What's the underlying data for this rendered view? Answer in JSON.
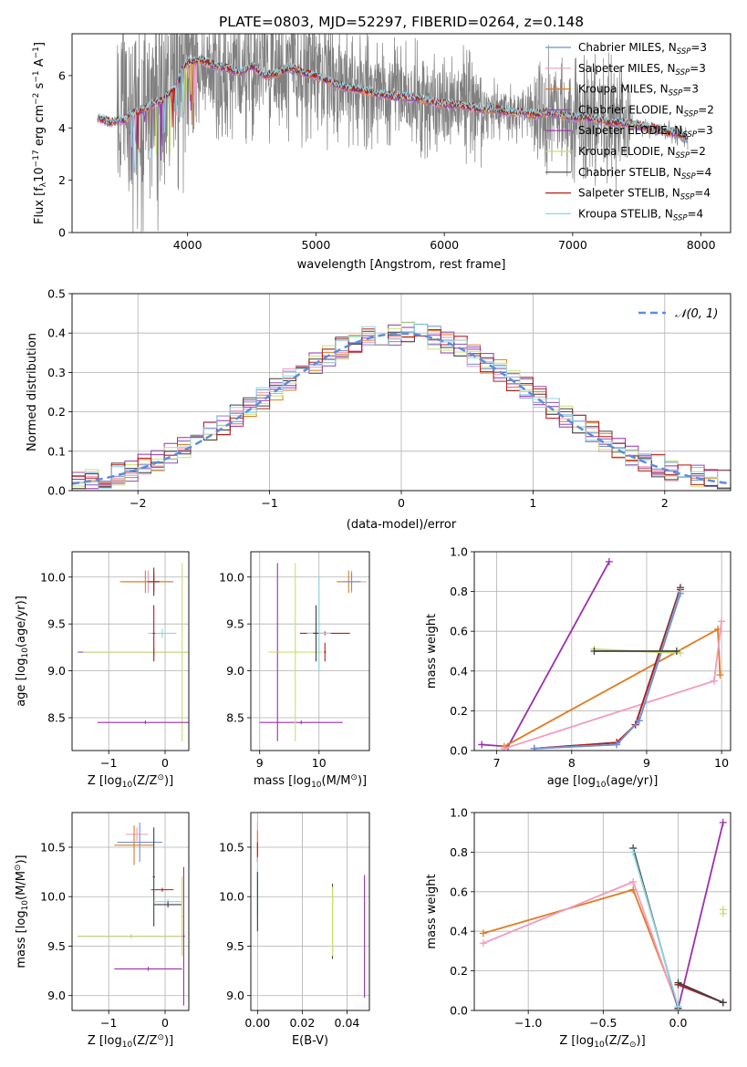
{
  "colors": {
    "chabrier_miles": "#6f8fd4",
    "salpeter_miles": "#f29abf",
    "kroupa_miles": "#e07b1f",
    "chabrier_elodie": "#8a50b0",
    "salpeter_elodie": "#9b2fae",
    "kroupa_elodie": "#c9e070",
    "chabrier_stelib": "#404040",
    "salpeter_stelib": "#b81c1c",
    "kroupa_stelib": "#8ed6e3",
    "data": "#808080",
    "gaussian": "#5a8edd",
    "grid": "#b0b0b0"
  },
  "legend_entries": [
    {
      "imf": "Chabrier",
      "lib": "MILES",
      "n": "3",
      "color_key": "chabrier_miles"
    },
    {
      "imf": "Salpeter",
      "lib": "MILES",
      "n": "3",
      "color_key": "salpeter_miles"
    },
    {
      "imf": "Kroupa",
      "lib": "MILES",
      "n": "3",
      "color_key": "kroupa_miles"
    },
    {
      "imf": "Chabrier",
      "lib": "ELODIE",
      "n": "2",
      "color_key": "chabrier_elodie"
    },
    {
      "imf": "Salpeter",
      "lib": "ELODIE",
      "n": "3",
      "color_key": "salpeter_elodie"
    },
    {
      "imf": "Kroupa",
      "lib": "ELODIE",
      "n": "2",
      "color_key": "kroupa_elodie"
    },
    {
      "imf": "Chabrier",
      "lib": "STELIB",
      "n": "4",
      "color_key": "chabrier_stelib"
    },
    {
      "imf": "Salpeter",
      "lib": "STELIB",
      "n": "4",
      "color_key": "salpeter_stelib"
    },
    {
      "imf": "Kroupa",
      "lib": "STELIB",
      "n": "4",
      "color_key": "kroupa_stelib"
    }
  ],
  "chart_data": [
    {
      "id": "spectrum",
      "type": "line",
      "title": "PLATE=0803, MJD=52297, FIBERID=0264, z=0.148",
      "xlabel": "wavelength [Angstrom, rest frame]",
      "ylabel_parts": [
        "Flux [f",
        "λ",
        "10",
        "−17",
        " erg cm",
        "−2",
        " s",
        "−1",
        " A",
        "−1",
        "]"
      ],
      "xlim": [
        3100,
        8230
      ],
      "ylim": [
        0,
        7.6
      ],
      "xticks": [
        4000,
        5000,
        6000,
        7000,
        8000
      ],
      "yticks": [
        0,
        2,
        4,
        6
      ],
      "grid": false,
      "legend_position": "top-right",
      "model_continuum": {
        "x": [
          3300,
          3350,
          3400,
          3450,
          3500,
          3550,
          3600,
          3650,
          3700,
          3750,
          3800,
          3850,
          3900,
          3950,
          4000,
          4100,
          4200,
          4300,
          4400,
          4500,
          4600,
          4700,
          4800,
          4900,
          5000,
          5100,
          5200,
          5300,
          5400,
          5500,
          5600,
          5700,
          5800,
          5900,
          6000,
          6100,
          6200,
          6300,
          6400,
          6500,
          6600,
          6700,
          6800,
          6900,
          7000,
          7100,
          7200,
          7300,
          7400,
          7500,
          7600,
          7700,
          7800,
          7900
        ],
        "y": [
          4.4,
          4.3,
          4.2,
          4.3,
          4.3,
          4.5,
          4.6,
          4.7,
          4.8,
          5.0,
          5.0,
          5.3,
          5.5,
          6.2,
          6.5,
          6.6,
          6.4,
          6.3,
          6.1,
          6.4,
          6.0,
          6.1,
          6.3,
          6.1,
          6.0,
          5.8,
          5.6,
          5.5,
          5.4,
          5.3,
          5.2,
          5.2,
          5.1,
          5.0,
          4.9,
          4.9,
          4.8,
          4.7,
          4.7,
          4.6,
          4.6,
          4.5,
          4.6,
          4.5,
          4.4,
          4.4,
          4.3,
          4.2,
          4.2,
          4.1,
          4.0,
          3.9,
          3.8,
          3.6
        ]
      }
    },
    {
      "id": "residuals",
      "type": "line",
      "xlabel": "(data-model)/error",
      "ylabel": "Normed distribution",
      "xlim": [
        -2.5,
        2.5
      ],
      "ylim": [
        0,
        0.5
      ],
      "xticks": [
        -2,
        -1,
        0,
        1,
        2
      ],
      "yticks": [
        0.0,
        0.1,
        0.2,
        0.3,
        0.4,
        0.5
      ],
      "grid": true,
      "legend_position": "top-right",
      "gaussian_label": "𝒩(0, 1)",
      "bin_width": 0.1
    },
    {
      "id": "age_vs_Z",
      "type": "scatter",
      "xlabel_parts": [
        "Z [log",
        "10",
        "(Z/Z",
        "⊙",
        ")]"
      ],
      "ylabel_parts": [
        "age  [log",
        "10",
        "(age/yr)]"
      ],
      "xlim": [
        -1.65,
        0.42
      ],
      "ylim": [
        8.15,
        10.27
      ],
      "xticks": [
        -1,
        0
      ],
      "yticks": [
        8.5,
        9.0,
        9.5,
        10.0
      ],
      "grid": true,
      "points": [
        {
          "k": "chabrier_miles",
          "x": -0.3,
          "y": 9.95,
          "xe": 0.45,
          "ye": 0.1
        },
        {
          "k": "salpeter_miles",
          "x": -0.3,
          "y": 9.95,
          "xe": 0.4,
          "ye": 0.12
        },
        {
          "k": "kroupa_miles",
          "x": -0.35,
          "y": 9.95,
          "xe": 0.45,
          "ye": 0.12
        },
        {
          "k": "chabrier_stelib",
          "x": -0.2,
          "y": 9.95,
          "xe": 0.1,
          "ye": 0.15
        },
        {
          "k": "salpeter_stelib",
          "x": -0.2,
          "y": 9.95,
          "xe": 0.1,
          "ye": 0.1
        },
        {
          "k": "kroupa_stelib",
          "x": -0.05,
          "y": 9.4,
          "xe": 0.25,
          "ye": 0.05
        },
        {
          "k": "chabrier_elodie",
          "x": -0.2,
          "y": 9.2,
          "xe": 1.35,
          "ye": 0.05
        },
        {
          "k": "kroupa_elodie",
          "x": -0.2,
          "y": 9.2,
          "xe": 1.25,
          "ye": 0.05
        },
        {
          "k": "kroupa_elodie",
          "x": 0.3,
          "y": 9.2,
          "xe": 0.04,
          "ye": 0.95
        },
        {
          "k": "salpeter_stelib",
          "x": -0.2,
          "y": 9.4,
          "xe": 0.02,
          "ye": 0.3
        },
        {
          "k": "salpeter_elodie",
          "x": -0.35,
          "y": 8.45,
          "xe": 0.85,
          "ye": 0.02
        }
      ]
    },
    {
      "id": "age_vs_mass",
      "type": "scatter",
      "xlabel_parts": [
        "mass [log",
        "10",
        "(M/M",
        "⊙",
        ")]"
      ],
      "xlim": [
        8.85,
        10.85
      ],
      "ylim": [
        8.15,
        10.27
      ],
      "xticks": [
        9,
        10
      ],
      "yticks": [
        8.5,
        9.0,
        9.5,
        10.0
      ],
      "grid": true,
      "points": [
        {
          "k": "salpeter_elodie",
          "x": 9.3,
          "y": 9.2,
          "xe": 0.05,
          "ye": 0.95
        },
        {
          "k": "salpeter_elodie",
          "x": 9.7,
          "y": 8.45,
          "xe": 0.7,
          "ye": 0.02
        },
        {
          "k": "kroupa_elodie",
          "x": 9.6,
          "y": 9.2,
          "xe": 0.01,
          "ye": 0.95
        },
        {
          "k": "kroupa_elodie",
          "x": 9.6,
          "y": 9.2,
          "xe": 0.45,
          "ye": 0.02
        },
        {
          "k": "salpeter_stelib",
          "x": 10.1,
          "y": 9.4,
          "xe": 0.42,
          "ye": 0.02
        },
        {
          "k": "kroupa_stelib",
          "x": 10.0,
          "y": 9.4,
          "xe": 0.2,
          "ye": 0.02
        },
        {
          "k": "chabrier_stelib",
          "x": 9.95,
          "y": 9.4,
          "xe": 0.05,
          "ye": 0.3
        },
        {
          "k": "kroupa_stelib",
          "x": 10.0,
          "y": 9.5,
          "xe": 0.03,
          "ye": 0.5
        },
        {
          "k": "salpeter_stelib",
          "x": 10.1,
          "y": 9.2,
          "xe": 0.02,
          "ye": 0.1
        },
        {
          "k": "salpeter_miles",
          "x": 10.55,
          "y": 9.95,
          "xe": 0.25,
          "ye": 0.12
        },
        {
          "k": "kroupa_miles",
          "x": 10.5,
          "y": 9.95,
          "xe": 0.2,
          "ye": 0.12
        },
        {
          "k": "chabrier_miles",
          "x": 10.55,
          "y": 9.95,
          "xe": 0.15,
          "ye": 0.1
        }
      ]
    },
    {
      "id": "weight_vs_age",
      "type": "line",
      "xlabel_parts": [
        "age  [log",
        "10",
        "(age/yr)]"
      ],
      "ylabel": "mass weight",
      "xlim": [
        6.7,
        10.12
      ],
      "ylim": [
        0,
        1.0
      ],
      "xticks": [
        7,
        8,
        9,
        10
      ],
      "yticks": [
        0.0,
        0.2,
        0.4,
        0.6,
        0.8,
        1.0
      ],
      "grid": true,
      "series": [
        {
          "k": "salpeter_elodie",
          "x": [
            6.8,
            7.15,
            8.5
          ],
          "y": [
            0.03,
            0.02,
            0.95
          ]
        },
        {
          "k": "kroupa_miles",
          "x": [
            7.1,
            9.95,
            9.98
          ],
          "y": [
            0.02,
            0.61,
            0.38
          ]
        },
        {
          "k": "salpeter_miles",
          "x": [
            7.1,
            9.9,
            10.0
          ],
          "y": [
            0.01,
            0.35,
            0.65
          ]
        },
        {
          "k": "chabrier_stelib",
          "x": [
            7.5,
            8.6,
            8.85,
            9.45
          ],
          "y": [
            0.01,
            0.04,
            0.13,
            0.82
          ]
        },
        {
          "k": "salpeter_stelib",
          "x": [
            7.5,
            8.6,
            8.85,
            9.45
          ],
          "y": [
            0.01,
            0.04,
            0.13,
            0.81
          ]
        },
        {
          "k": "kroupa_stelib",
          "x": [
            7.5,
            8.6,
            8.9,
            9.45
          ],
          "y": [
            0.01,
            0.03,
            0.15,
            0.8
          ]
        },
        {
          "k": "chabrier_miles",
          "x": [
            7.5,
            8.6,
            8.9,
            9.45
          ],
          "y": [
            0.01,
            0.03,
            0.15,
            0.79
          ]
        },
        {
          "k": "kroupa_elodie",
          "x": [
            8.3,
            9.45
          ],
          "y": [
            0.51,
            0.49
          ]
        },
        {
          "k": "chabrier_stelib",
          "x": [
            8.3,
            9.4
          ],
          "y": [
            0.5,
            0.5
          ]
        }
      ]
    },
    {
      "id": "mass_vs_Z",
      "type": "scatter",
      "xlabel_parts": [
        "Z [log",
        "10",
        "(Z/Z",
        "⊙",
        ")]"
      ],
      "ylabel_parts": [
        "mass [log",
        "10",
        "(M/M",
        "⊙",
        ")]"
      ],
      "xlim": [
        -1.65,
        0.42
      ],
      "ylim": [
        8.85,
        10.85
      ],
      "xticks": [
        -1,
        0
      ],
      "yticks": [
        9.0,
        9.5,
        10.0,
        10.5
      ],
      "grid": true,
      "points": [
        {
          "k": "salpeter_miles",
          "x": -0.5,
          "y": 10.63,
          "xe": 0.2,
          "ye": 0.07
        },
        {
          "k": "chabrier_miles",
          "x": -0.45,
          "y": 10.55,
          "xe": 0.4,
          "ye": 0.2
        },
        {
          "k": "kroupa_miles",
          "x": -0.55,
          "y": 10.52,
          "xe": 0.35,
          "ye": 0.2
        },
        {
          "k": "chabrier_stelib",
          "x": -0.2,
          "y": 10.2,
          "xe": 0.02,
          "ye": 0.5
        },
        {
          "k": "salpeter_stelib",
          "x": -0.05,
          "y": 10.07,
          "xe": 0.2,
          "ye": 0.02
        },
        {
          "k": "kroupa_stelib",
          "x": 0.05,
          "y": 9.95,
          "xe": 0.25,
          "ye": 0.03
        },
        {
          "k": "chabrier_stelib",
          "x": 0.05,
          "y": 9.92,
          "xe": 0.25,
          "ye": 0.03
        },
        {
          "k": "chabrier_elodie",
          "x": -0.6,
          "y": 9.6,
          "xe": 0.95,
          "ye": 0.02
        },
        {
          "k": "kroupa_elodie",
          "x": -0.6,
          "y": 9.6,
          "xe": 0.95,
          "ye": 0.02
        },
        {
          "k": "kroupa_elodie",
          "x": 0.3,
          "y": 9.8,
          "xe": 0.02,
          "ye": 0.4
        },
        {
          "k": "salpeter_elodie",
          "x": -0.3,
          "y": 9.27,
          "xe": 0.6,
          "ye": 0.02
        },
        {
          "k": "salpeter_elodie",
          "x": 0.33,
          "y": 9.6,
          "xe": 0.02,
          "ye": 0.7
        }
      ]
    },
    {
      "id": "mass_vs_ebv",
      "type": "scatter",
      "xlabel": "E(B-V)",
      "xlim": [
        -0.003,
        0.05
      ],
      "ylim": [
        8.85,
        10.85
      ],
      "xticks": [
        0.0,
        0.02,
        0.04
      ],
      "xtick_labels": [
        "0.00",
        "0.02",
        "0.04"
      ],
      "yticks": [
        9.0,
        9.5,
        10.0,
        10.5
      ],
      "grid": true,
      "points": [
        {
          "k": "salpeter_miles",
          "x": 0.0,
          "y": 10.63,
          "xe": 0.0,
          "ye": 0.12
        },
        {
          "k": "kroupa_miles",
          "x": 0.0,
          "y": 10.52,
          "xe": 0.0,
          "ye": 0.15
        },
        {
          "k": "salpeter_stelib",
          "x": 0.0,
          "y": 10.45,
          "xe": 0.0,
          "ye": 0.1
        },
        {
          "k": "kroupa_stelib",
          "x": 0.0,
          "y": 10.1,
          "xe": 0.0,
          "ye": 0.3
        },
        {
          "k": "chabrier_stelib",
          "x": 0.0,
          "y": 9.95,
          "xe": 0.0,
          "ye": 0.3
        },
        {
          "k": "chabrier_stelib",
          "x": 0.0335,
          "y": 9.75,
          "xe": 0.0,
          "ye": 0.38
        },
        {
          "k": "kroupa_elodie",
          "x": 0.0335,
          "y": 9.75,
          "xe": 0.0,
          "ye": 0.35
        },
        {
          "k": "salpeter_elodie",
          "x": 0.0478,
          "y": 9.6,
          "xe": 0.0,
          "ye": 0.62
        }
      ]
    },
    {
      "id": "weight_vs_Z",
      "type": "line",
      "xlabel_parts": [
        "Z [log",
        "10",
        "(Z/Z",
        "⊙",
        ")]"
      ],
      "ylabel": "mass weight",
      "xlim": [
        -1.36,
        0.35
      ],
      "ylim": [
        0,
        1.0
      ],
      "xticks": [
        -1.0,
        -0.5,
        0.0
      ],
      "xtick_labels": [
        "−1.0",
        "−0.5",
        "0.0"
      ],
      "yticks": [
        0.0,
        0.2,
        0.4,
        0.6,
        0.8,
        1.0
      ],
      "grid": true,
      "series": [
        {
          "k": "salpeter_elodie",
          "x": [
            0.0,
            0.3
          ],
          "y": [
            0.01,
            0.95
          ]
        },
        {
          "k": "salpeter_stelib",
          "x": [
            0.0,
            0.3
          ],
          "y": [
            0.13,
            0.04
          ]
        },
        {
          "k": "chabrier_stelib",
          "x": [
            0.0,
            0.3
          ],
          "y": [
            0.14,
            0.04
          ]
        },
        {
          "k": "kroupa_miles",
          "x": [
            -1.3,
            -0.3,
            0.0
          ],
          "y": [
            0.39,
            0.61,
            0.02
          ]
        },
        {
          "k": "salpeter_miles",
          "x": [
            -1.3,
            -0.3,
            0.0
          ],
          "y": [
            0.34,
            0.65,
            0.01
          ]
        },
        {
          "k": "chabrier_stelib",
          "x": [
            -0.3,
            0.0
          ],
          "y": [
            0.82,
            0.01
          ]
        },
        {
          "k": "kroupa_stelib",
          "x": [
            -0.3,
            0.0
          ],
          "y": [
            0.8,
            0.02
          ]
        },
        {
          "k": "kroupa_elodie",
          "x": [
            0.3,
            0.3
          ],
          "y": [
            0.51,
            0.49
          ]
        }
      ]
    }
  ]
}
